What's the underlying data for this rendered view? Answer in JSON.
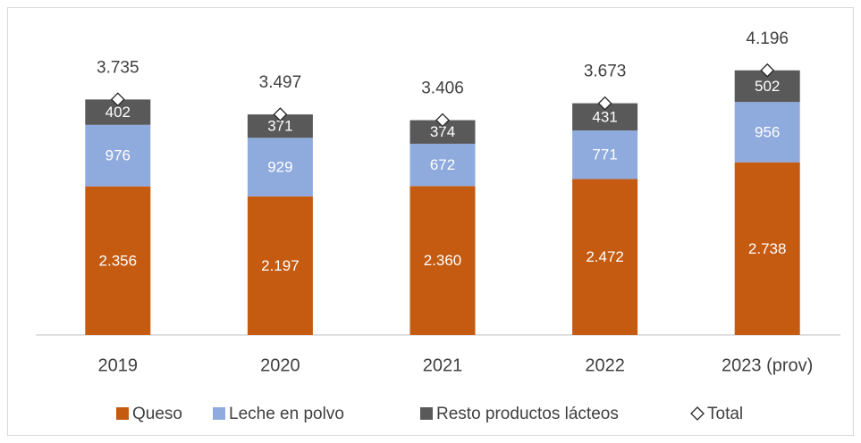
{
  "chart_data": {
    "type": "bar",
    "stacked": true,
    "categories": [
      "2019",
      "2020",
      "2021",
      "2022",
      "2023 (prov)"
    ],
    "ylim": [
      0,
      5000
    ],
    "series": [
      {
        "name": "Queso",
        "color": "#c55a11",
        "values": [
          2356,
          2197,
          2360,
          2472,
          2738
        ],
        "value_labels": [
          "2.356",
          "2.197",
          "2.360",
          "2.472",
          "2.738"
        ]
      },
      {
        "name": "Leche en polvo",
        "color": "#8faadc",
        "values": [
          976,
          929,
          672,
          771,
          956
        ]
      },
      {
        "name": "Resto productos lácteos",
        "color": "#595959",
        "values": [
          402,
          371,
          374,
          431,
          502
        ]
      },
      {
        "name": "Total",
        "type": "scatter",
        "color": "#ffffff",
        "values": [
          3735,
          3497,
          3406,
          3673,
          4196
        ],
        "value_labels": [
          "3.735",
          "3.497",
          "3.406",
          "3.673",
          "4.196"
        ]
      }
    ]
  }
}
